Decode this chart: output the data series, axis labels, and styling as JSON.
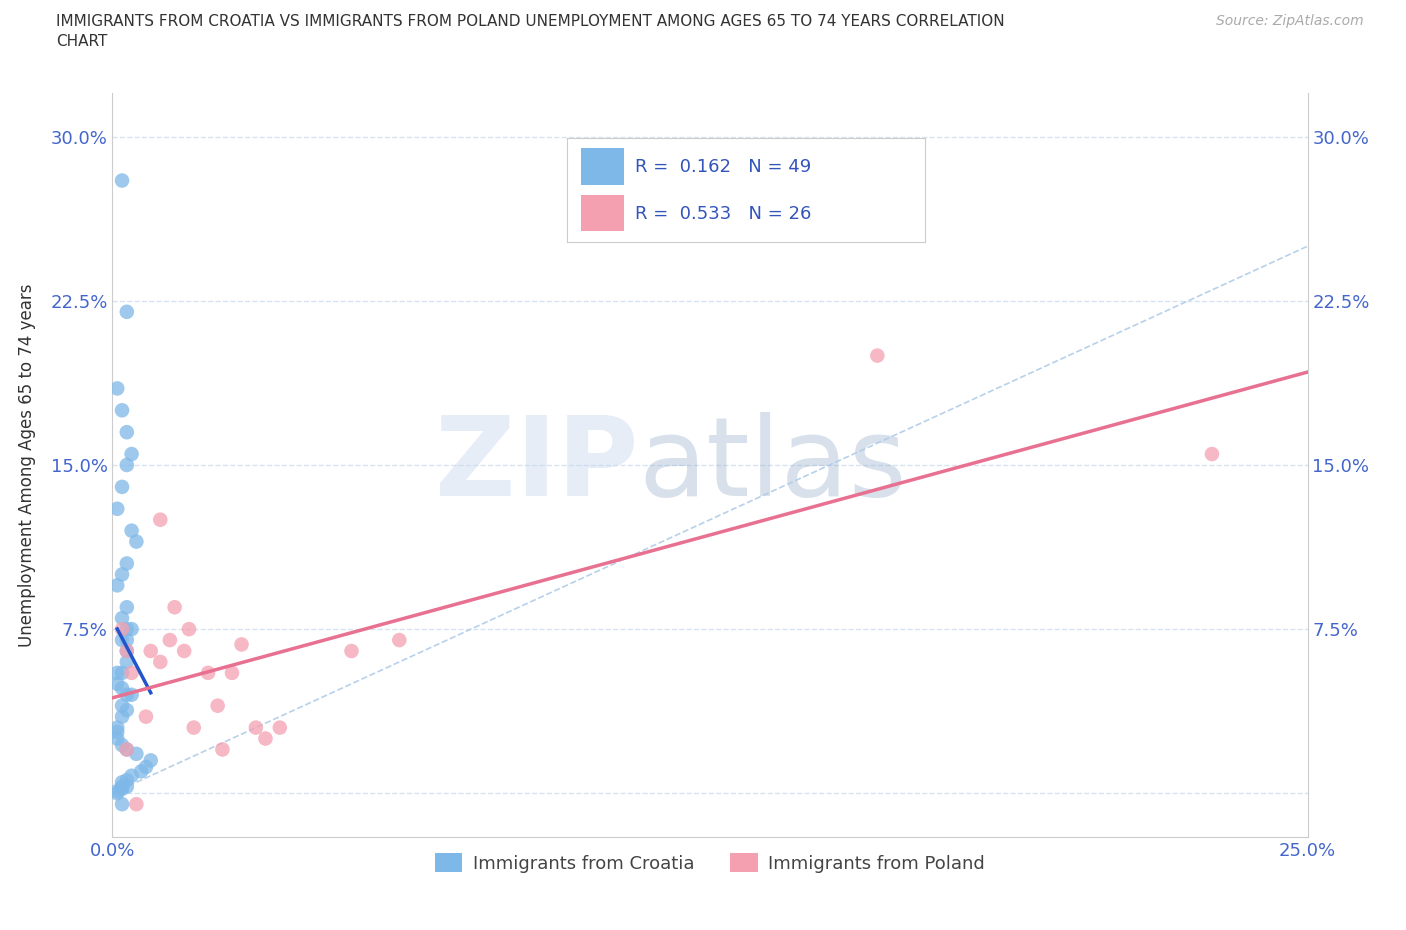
{
  "title_line1": "IMMIGRANTS FROM CROATIA VS IMMIGRANTS FROM POLAND UNEMPLOYMENT AMONG AGES 65 TO 74 YEARS CORRELATION",
  "title_line2": "CHART",
  "source": "Source: ZipAtlas.com",
  "ylabel": "Unemployment Among Ages 65 to 74 years",
  "xlim": [
    0.0,
    0.25
  ],
  "ylim": [
    -0.02,
    0.32
  ],
  "xtick_positions": [
    0.0,
    0.05,
    0.1,
    0.15,
    0.2,
    0.25
  ],
  "xtick_labels": [
    "0.0%",
    "",
    "",
    "",
    "",
    "25.0%"
  ],
  "ytick_positions": [
    0.0,
    0.075,
    0.15,
    0.225,
    0.3
  ],
  "ytick_labels": [
    "",
    "7.5%",
    "15.0%",
    "22.5%",
    "30.0%"
  ],
  "croatia_R": 0.162,
  "croatia_N": 49,
  "poland_R": 0.533,
  "poland_N": 26,
  "croatia_color": "#7eb8e8",
  "poland_color": "#f4a0b0",
  "croatia_line_color": "#2255cc",
  "poland_line_color": "#e87090",
  "diagonal_color": "#b0cce8",
  "background_color": "#ffffff",
  "croatia_x": [
    0.002,
    0.003,
    0.001,
    0.002,
    0.003,
    0.004,
    0.003,
    0.002,
    0.001,
    0.004,
    0.005,
    0.003,
    0.002,
    0.001,
    0.003,
    0.002,
    0.004,
    0.003,
    0.002,
    0.003,
    0.003,
    0.003,
    0.002,
    0.001,
    0.001,
    0.002,
    0.003,
    0.004,
    0.002,
    0.003,
    0.002,
    0.001,
    0.001,
    0.001,
    0.002,
    0.003,
    0.005,
    0.008,
    0.007,
    0.006,
    0.004,
    0.002,
    0.003,
    0.001,
    0.002,
    0.001,
    0.002,
    0.003,
    0.002
  ],
  "croatia_y": [
    0.28,
    0.22,
    0.185,
    0.175,
    0.165,
    0.155,
    0.15,
    0.14,
    0.13,
    0.12,
    0.115,
    0.105,
    0.1,
    0.095,
    0.085,
    0.08,
    0.075,
    0.075,
    0.07,
    0.07,
    0.065,
    0.06,
    0.055,
    0.055,
    0.05,
    0.048,
    0.045,
    0.045,
    0.04,
    0.038,
    0.035,
    0.03,
    0.028,
    0.025,
    0.022,
    0.02,
    0.018,
    0.015,
    0.012,
    0.01,
    0.008,
    0.005,
    0.003,
    0.001,
    0.002,
    0.0,
    0.003,
    0.006,
    -0.005
  ],
  "poland_x": [
    0.002,
    0.003,
    0.004,
    0.003,
    0.005,
    0.007,
    0.008,
    0.01,
    0.01,
    0.012,
    0.013,
    0.015,
    0.016,
    0.017,
    0.02,
    0.022,
    0.023,
    0.025,
    0.027,
    0.03,
    0.032,
    0.035,
    0.05,
    0.06,
    0.16,
    0.23
  ],
  "poland_y": [
    0.075,
    0.065,
    0.055,
    0.02,
    -0.005,
    0.035,
    0.065,
    0.125,
    0.06,
    0.07,
    0.085,
    0.065,
    0.075,
    0.03,
    0.055,
    0.04,
    0.02,
    0.055,
    0.068,
    0.03,
    0.025,
    0.03,
    0.065,
    0.07,
    0.2,
    0.155
  ]
}
